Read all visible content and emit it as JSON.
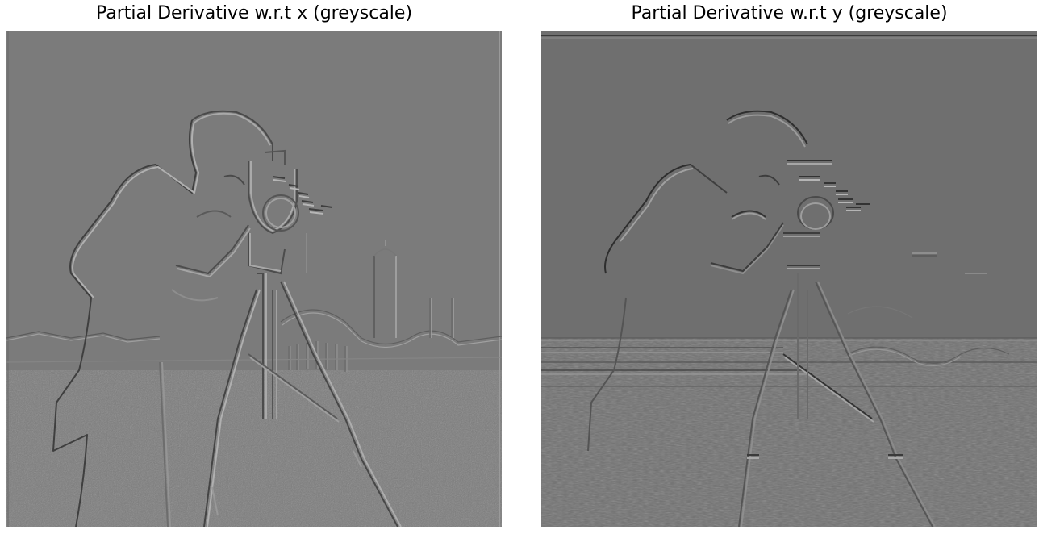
{
  "figure": {
    "panels": [
      {
        "title": "Partial Derivative w.r.t x (greyscale)",
        "image": {
          "kind": "greyscale-edge-map",
          "depicts": "cameraman photograph, horizontal derivative (vertical edges emphasised)",
          "background_grey": "#7b7b7b"
        }
      },
      {
        "title": "Partial Derivative w.r.t y (greyscale)",
        "image": {
          "kind": "greyscale-edge-map",
          "depicts": "cameraman photograph, vertical derivative (horizontal edges emphasised)",
          "background_grey": "#6f6f6f"
        }
      }
    ]
  }
}
